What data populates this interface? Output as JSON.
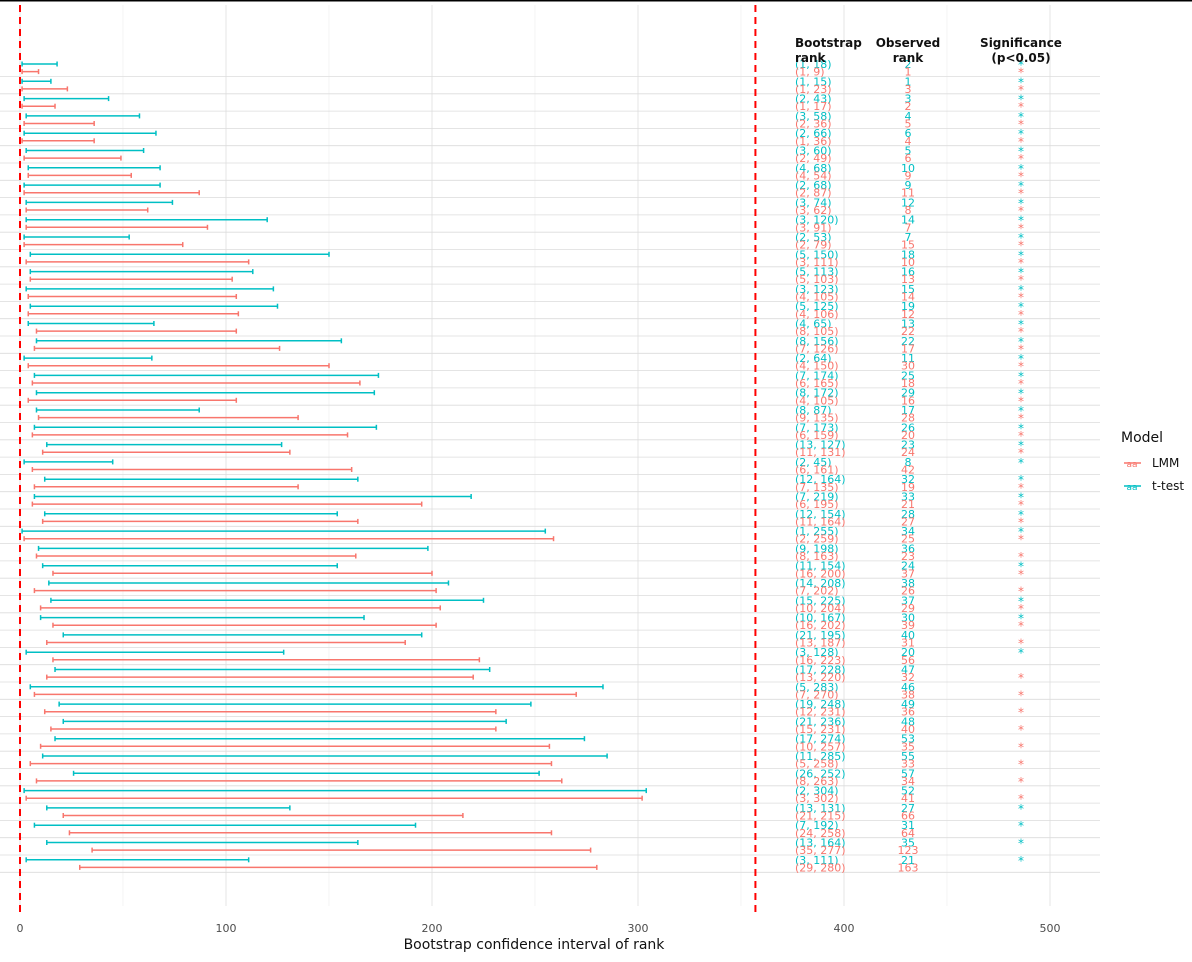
{
  "colors": {
    "LMM": "#F8766D",
    "t-test": "#00BFC4",
    "ref_line": "#FF0000",
    "grid": "#E5E5E5",
    "text": "#4D4D4D"
  },
  "chart_data": {
    "type": "interval",
    "xlabel": "Bootstrap confidence interval of rank",
    "xlim": [
      0,
      520
    ],
    "x_ticks": [
      0,
      100,
      200,
      300,
      400,
      500
    ],
    "reference_lines": [
      0,
      357
    ],
    "grid": true,
    "legend": {
      "title": "Model",
      "position": "right",
      "entries": [
        "LMM",
        "t-test"
      ]
    },
    "column_headers": {
      "bootstrap_rank": [
        "Bootstrap",
        "rank"
      ],
      "observed_rank": [
        "Observed",
        "rank"
      ],
      "significance": [
        "Significance",
        "(p<0.05)"
      ]
    },
    "rows": [
      {
        "t": [
          1,
          18
        ],
        "to": 2,
        "ts": "*",
        "l": [
          1,
          9
        ],
        "lo": 1,
        "ls": "*"
      },
      {
        "t": [
          1,
          15
        ],
        "to": 1,
        "ts": "*",
        "l": [
          1,
          23
        ],
        "lo": 3,
        "ls": "*"
      },
      {
        "t": [
          2,
          43
        ],
        "to": 3,
        "ts": "*",
        "l": [
          1,
          17
        ],
        "lo": 2,
        "ls": "*"
      },
      {
        "t": [
          3,
          58
        ],
        "to": 4,
        "ts": "*",
        "l": [
          2,
          36
        ],
        "lo": 5,
        "ls": "*"
      },
      {
        "t": [
          2,
          66
        ],
        "to": 6,
        "ts": "*",
        "l": [
          1,
          36
        ],
        "lo": 4,
        "ls": "*"
      },
      {
        "t": [
          3,
          60
        ],
        "to": 5,
        "ts": "*",
        "l": [
          2,
          49
        ],
        "lo": 6,
        "ls": "*"
      },
      {
        "t": [
          4,
          68
        ],
        "to": 10,
        "ts": "*",
        "l": [
          4,
          54
        ],
        "lo": 9,
        "ls": "*"
      },
      {
        "t": [
          2,
          68
        ],
        "to": 9,
        "ts": "*",
        "l": [
          2,
          87
        ],
        "lo": 11,
        "ls": "*"
      },
      {
        "t": [
          3,
          74
        ],
        "to": 12,
        "ts": "*",
        "l": [
          3,
          62
        ],
        "lo": 8,
        "ls": "*"
      },
      {
        "t": [
          3,
          120
        ],
        "to": 14,
        "ts": "*",
        "l": [
          3,
          91
        ],
        "lo": 7,
        "ls": "*"
      },
      {
        "t": [
          2,
          53
        ],
        "to": 7,
        "ts": "*",
        "l": [
          2,
          79
        ],
        "lo": 15,
        "ls": "*"
      },
      {
        "t": [
          5,
          150
        ],
        "to": 18,
        "ts": "*",
        "l": [
          3,
          111
        ],
        "lo": 10,
        "ls": "*"
      },
      {
        "t": [
          5,
          113
        ],
        "to": 16,
        "ts": "*",
        "l": [
          5,
          103
        ],
        "lo": 13,
        "ls": "*"
      },
      {
        "t": [
          3,
          123
        ],
        "to": 15,
        "ts": "*",
        "l": [
          4,
          105
        ],
        "lo": 14,
        "ls": "*"
      },
      {
        "t": [
          5,
          125
        ],
        "to": 19,
        "ts": "*",
        "l": [
          4,
          106
        ],
        "lo": 12,
        "ls": "*"
      },
      {
        "t": [
          4,
          65
        ],
        "to": 13,
        "ts": "*",
        "l": [
          8,
          105
        ],
        "lo": 22,
        "ls": "*"
      },
      {
        "t": [
          8,
          156
        ],
        "to": 22,
        "ts": "*",
        "l": [
          7,
          126
        ],
        "lo": 17,
        "ls": "*"
      },
      {
        "t": [
          2,
          64
        ],
        "to": 11,
        "ts": "*",
        "l": [
          4,
          150
        ],
        "lo": 30,
        "ls": "*"
      },
      {
        "t": [
          7,
          174
        ],
        "to": 25,
        "ts": "*",
        "l": [
          6,
          165
        ],
        "lo": 18,
        "ls": "*"
      },
      {
        "t": [
          8,
          172
        ],
        "to": 29,
        "ts": "*",
        "l": [
          4,
          105
        ],
        "lo": 16,
        "ls": "*"
      },
      {
        "t": [
          8,
          87
        ],
        "to": 17,
        "ts": "*",
        "l": [
          9,
          135
        ],
        "lo": 28,
        "ls": "*"
      },
      {
        "t": [
          7,
          173
        ],
        "to": 26,
        "ts": "*",
        "l": [
          6,
          159
        ],
        "lo": 20,
        "ls": "*"
      },
      {
        "t": [
          13,
          127
        ],
        "to": 23,
        "ts": "*",
        "l": [
          11,
          131
        ],
        "lo": 24,
        "ls": "*"
      },
      {
        "t": [
          2,
          45
        ],
        "to": 8,
        "ts": "*",
        "l": [
          6,
          161
        ],
        "lo": 42,
        "ls": ""
      },
      {
        "t": [
          12,
          164
        ],
        "to": 32,
        "ts": "*",
        "l": [
          7,
          135
        ],
        "lo": 19,
        "ls": "*"
      },
      {
        "t": [
          7,
          219
        ],
        "to": 33,
        "ts": "*",
        "l": [
          6,
          195
        ],
        "lo": 21,
        "ls": "*"
      },
      {
        "t": [
          12,
          154
        ],
        "to": 28,
        "ts": "*",
        "l": [
          11,
          164
        ],
        "lo": 27,
        "ls": "*"
      },
      {
        "t": [
          1,
          255
        ],
        "to": 34,
        "ts": "*",
        "l": [
          2,
          259
        ],
        "lo": 25,
        "ls": "*"
      },
      {
        "t": [
          9,
          198
        ],
        "to": 36,
        "ts": "",
        "l": [
          8,
          163
        ],
        "lo": 23,
        "ls": "*"
      },
      {
        "t": [
          11,
          154
        ],
        "to": 24,
        "ts": "*",
        "l": [
          16,
          200
        ],
        "lo": 37,
        "ls": "*"
      },
      {
        "t": [
          14,
          208
        ],
        "to": 38,
        "ts": "",
        "l": [
          7,
          202
        ],
        "lo": 26,
        "ls": "*"
      },
      {
        "t": [
          15,
          225
        ],
        "to": 37,
        "ts": "*",
        "l": [
          10,
          204
        ],
        "lo": 29,
        "ls": "*"
      },
      {
        "t": [
          10,
          167
        ],
        "to": 30,
        "ts": "*",
        "l": [
          16,
          202
        ],
        "lo": 39,
        "ls": "*"
      },
      {
        "t": [
          21,
          195
        ],
        "to": 40,
        "ts": "",
        "l": [
          13,
          187
        ],
        "lo": 31,
        "ls": "*"
      },
      {
        "t": [
          3,
          128
        ],
        "to": 20,
        "ts": "*",
        "l": [
          16,
          223
        ],
        "lo": 56,
        "ls": ""
      },
      {
        "t": [
          17,
          228
        ],
        "to": 47,
        "ts": "",
        "l": [
          13,
          220
        ],
        "lo": 32,
        "ls": "*"
      },
      {
        "t": [
          5,
          283
        ],
        "to": 46,
        "ts": "",
        "l": [
          7,
          270
        ],
        "lo": 38,
        "ls": "*"
      },
      {
        "t": [
          19,
          248
        ],
        "to": 49,
        "ts": "",
        "l": [
          12,
          231
        ],
        "lo": 36,
        "ls": "*"
      },
      {
        "t": [
          21,
          236
        ],
        "to": 48,
        "ts": "",
        "l": [
          15,
          231
        ],
        "lo": 40,
        "ls": "*"
      },
      {
        "t": [
          17,
          274
        ],
        "to": 53,
        "ts": "",
        "l": [
          10,
          257
        ],
        "lo": 35,
        "ls": "*"
      },
      {
        "t": [
          11,
          285
        ],
        "to": 55,
        "ts": "",
        "l": [
          5,
          258
        ],
        "lo": 33,
        "ls": "*"
      },
      {
        "t": [
          26,
          252
        ],
        "to": 57,
        "ts": "",
        "l": [
          8,
          263
        ],
        "lo": 34,
        "ls": "*"
      },
      {
        "t": [
          2,
          304
        ],
        "to": 52,
        "ts": "",
        "l": [
          3,
          302
        ],
        "lo": 41,
        "ls": "*"
      },
      {
        "t": [
          13,
          131
        ],
        "to": 27,
        "ts": "*",
        "l": [
          21,
          215
        ],
        "lo": 66,
        "ls": ""
      },
      {
        "t": [
          7,
          192
        ],
        "to": 31,
        "ts": "*",
        "l": [
          24,
          258
        ],
        "lo": 64,
        "ls": ""
      },
      {
        "t": [
          13,
          164
        ],
        "to": 35,
        "ts": "*",
        "l": [
          35,
          277
        ],
        "lo": 123,
        "ls": ""
      },
      {
        "t": [
          3,
          111
        ],
        "to": 21,
        "ts": "*",
        "l": [
          29,
          280
        ],
        "lo": 163,
        "ls": ""
      }
    ]
  }
}
